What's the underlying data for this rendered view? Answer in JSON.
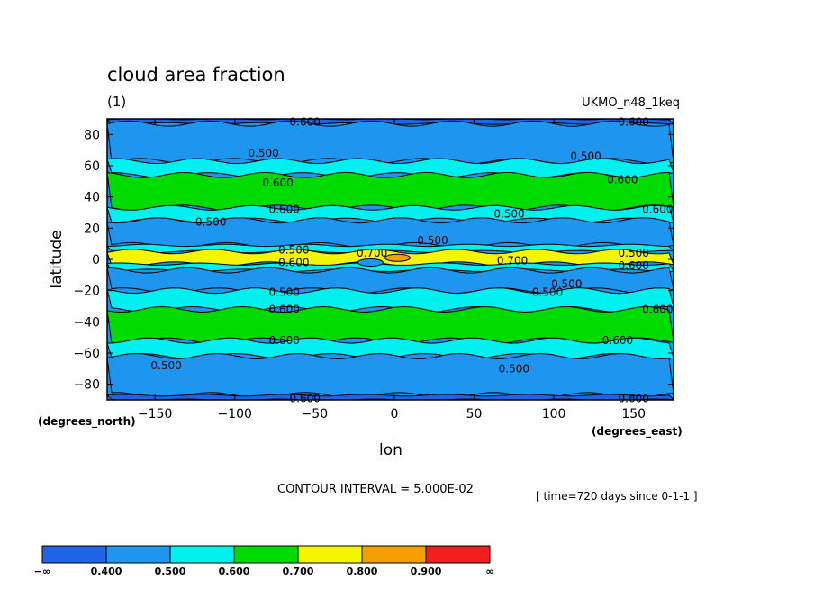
{
  "chart_data": {
    "type": "heatmap",
    "title": "cloud area fraction",
    "units": "(1)",
    "model": "UKMO_n48_1keq",
    "xlabel": "lon",
    "ylabel": "latitude",
    "x_unit": "(degrees_east)",
    "y_unit": "(degrees_north)",
    "xlim": [
      -180,
      175
    ],
    "ylim": [
      -90,
      90
    ],
    "x_ticks": [
      -150,
      -100,
      -50,
      0,
      50,
      100,
      150
    ],
    "x_tick_labels": [
      "−150",
      "−100",
      "−50",
      "0",
      "50",
      "100",
      "150"
    ],
    "y_ticks": [
      80,
      60,
      40,
      20,
      0,
      -20,
      -40,
      -60,
      -80
    ],
    "y_tick_labels": [
      "80",
      "60",
      "40",
      "20",
      "0",
      "−20",
      "−40",
      "−60",
      "−80"
    ],
    "contour_interval_text": "CONTOUR INTERVAL = 5.000E-02",
    "time_text": "[ time=720 days since 0-1-1 ]",
    "colorbar": {
      "boundary_labels": [
        "−∞",
        "0.400",
        "0.500",
        "0.600",
        "0.700",
        "0.800",
        "0.900",
        "∞"
      ],
      "colors": [
        "#1f64e6",
        "#1e96f0",
        "#00f0f0",
        "#00dc00",
        "#f5f500",
        "#f5a000",
        "#f01e1e"
      ]
    },
    "bands": [
      {
        "lat_top": 90,
        "lat_bottom": 87,
        "value_level": 0.35
      },
      {
        "lat_top": 87,
        "lat_bottom": 63,
        "value_level": 0.45
      },
      {
        "lat_top": 63,
        "lat_bottom": 54,
        "value_level": 0.55
      },
      {
        "lat_top": 54,
        "lat_bottom": 33,
        "value_level": 0.65
      },
      {
        "lat_top": 33,
        "lat_bottom": 25,
        "value_level": 0.55
      },
      {
        "lat_top": 25,
        "lat_bottom": 9,
        "value_level": 0.45
      },
      {
        "lat_top": 9,
        "lat_bottom": 5,
        "value_level": 0.55
      },
      {
        "lat_top": 5,
        "lat_bottom": -3,
        "value_level": 0.75
      },
      {
        "lat_top": -3,
        "lat_bottom": -7,
        "value_level": 0.55
      },
      {
        "lat_top": -7,
        "lat_bottom": -20,
        "value_level": 0.45
      },
      {
        "lat_top": -20,
        "lat_bottom": -32,
        "value_level": 0.55
      },
      {
        "lat_top": -32,
        "lat_bottom": -52,
        "value_level": 0.65
      },
      {
        "lat_top": -52,
        "lat_bottom": -62,
        "value_level": 0.55
      },
      {
        "lat_top": -62,
        "lat_bottom": -87,
        "value_level": 0.45
      },
      {
        "lat_top": -87,
        "lat_bottom": -90,
        "value_level": 0.35
      }
    ],
    "patches": [
      {
        "lon": 2,
        "lat": 1,
        "value_level": 0.85
      },
      {
        "lon": -15,
        "lat": -2,
        "value_level": 0.45
      }
    ],
    "contour_labels": [
      {
        "text": "0.600",
        "lon": -56,
        "lat": 88
      },
      {
        "text": "0.600",
        "lon": 150,
        "lat": 88
      },
      {
        "text": "0.500",
        "lon": -82,
        "lat": 68
      },
      {
        "text": "0.500",
        "lon": 120,
        "lat": 66
      },
      {
        "text": "0.600",
        "lon": -73,
        "lat": 49
      },
      {
        "text": "0.600",
        "lon": 143,
        "lat": 51
      },
      {
        "text": "0.600",
        "lon": -69,
        "lat": 32
      },
      {
        "text": "0.500",
        "lon": 72,
        "lat": 29
      },
      {
        "text": "0.600",
        "lon": 165,
        "lat": 32
      },
      {
        "text": "0.500",
        "lon": -115,
        "lat": 24
      },
      {
        "text": "0.500",
        "lon": 24,
        "lat": 12
      },
      {
        "text": "0.500",
        "lon": -63,
        "lat": 6
      },
      {
        "text": "0.700",
        "lon": -14,
        "lat": 4
      },
      {
        "text": "0.500",
        "lon": 150,
        "lat": 4
      },
      {
        "text": "0.700",
        "lon": 74,
        "lat": -1
      },
      {
        "text": "0.600",
        "lon": -63,
        "lat": -2
      },
      {
        "text": "0.600",
        "lon": 150,
        "lat": -4
      },
      {
        "text": "0.500",
        "lon": 108,
        "lat": -16
      },
      {
        "text": "0.500",
        "lon": 96,
        "lat": -21
      },
      {
        "text": "0.500",
        "lon": -69,
        "lat": -21
      },
      {
        "text": "0.600",
        "lon": -69,
        "lat": -32
      },
      {
        "text": "0.600",
        "lon": 165,
        "lat": -32
      },
      {
        "text": "0.600",
        "lon": -69,
        "lat": -52
      },
      {
        "text": "0.600",
        "lon": 140,
        "lat": -52
      },
      {
        "text": "0.500",
        "lon": -143,
        "lat": -68
      },
      {
        "text": "0.500",
        "lon": 75,
        "lat": -70
      },
      {
        "text": "0.600",
        "lon": -56,
        "lat": -89
      },
      {
        "text": "0.600",
        "lon": 150,
        "lat": -89
      }
    ]
  }
}
